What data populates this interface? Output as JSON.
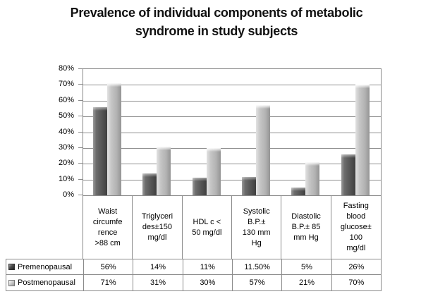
{
  "title": "Prevalence of individual components of metabolic\nsyndrome in study subjects",
  "chart_data": {
    "type": "bar",
    "title": "Prevalence of individual components of metabolic syndrome in study subjects",
    "categories": [
      "Waist circumference >88 cm",
      "Triglycerides±150 mg/dl",
      "HDL c < 50 mg/dl",
      "Systolic B.P.± 130 mm Hg",
      "Diastolic B.P.± 85 mm Hg",
      "Fasting blood glucose± 100 mg/dl"
    ],
    "categories_display": [
      "Waist\ncircumfe\nrence\n>88 cm",
      "Triglyceri\ndes±150\nmg/dl",
      "HDL c <\n50 mg/dl",
      "Systolic\nB.P.±\n130 mm\nHg",
      "Diastolic\nB.P.± 85\nmm Hg",
      "Fasting\nblood\nglucose±\n100\nmg/dl"
    ],
    "series": [
      {
        "name": "Premenopausal",
        "values": [
          56,
          14,
          11,
          11.5,
          5,
          26
        ],
        "display_values": [
          "56%",
          "14%",
          "11%",
          "11.50%",
          "5%",
          "26%"
        ],
        "color": "#565656"
      },
      {
        "name": "Postmenopausal",
        "values": [
          71,
          31,
          30,
          57,
          21,
          70
        ],
        "display_values": [
          "71%",
          "31%",
          "30%",
          "57%",
          "21%",
          "70%"
        ],
        "color": "#bfbfbf"
      }
    ],
    "xlabel": "",
    "ylabel": "",
    "ylim": [
      0,
      80
    ],
    "ytick_step": 10,
    "ytick_labels_top_to_bottom": [
      "80%",
      "70%",
      "60%",
      "50%",
      "40%",
      "30%",
      "20%",
      "10%",
      "0%"
    ],
    "grid": true,
    "legend_position": "bottom-data-table"
  },
  "colors": {
    "background": "#ffffff",
    "axis_line": "#8a8a8a",
    "gridline": "#8f8f8f",
    "text": "#000000",
    "dark_series": "#565656",
    "light_series": "#bfbfbf"
  }
}
